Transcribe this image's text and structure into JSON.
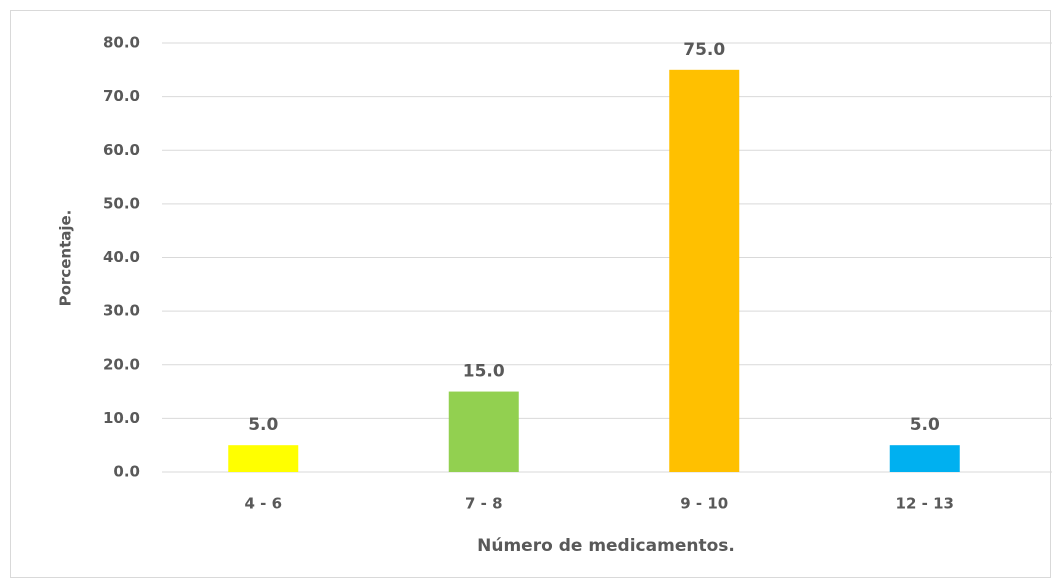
{
  "chart_data": {
    "type": "bar",
    "x_label": "Número de medicamentos.",
    "y_label": "Porcentaje.",
    "categories": [
      "4 - 6",
      "7 - 8",
      "9 - 10",
      "12 - 13"
    ],
    "values": [
      5.0,
      15.0,
      75.0,
      5.0
    ],
    "value_labels": [
      "5.0",
      "15.0",
      "75.0",
      "5.0"
    ],
    "colors": [
      "#ffff00",
      "#92d050",
      "#ffc000",
      "#00b0f0"
    ],
    "ylim": [
      0,
      80
    ],
    "yticks": [
      {
        "value": 0,
        "label": "0.0"
      },
      {
        "value": 10,
        "label": "10.0"
      },
      {
        "value": 20,
        "label": "20.0"
      },
      {
        "value": 30,
        "label": "30.0"
      },
      {
        "value": 40,
        "label": "40.0"
      },
      {
        "value": 50,
        "label": "50.0"
      },
      {
        "value": 60,
        "label": "60.0"
      },
      {
        "value": 70,
        "label": "70.0"
      },
      {
        "value": 80,
        "label": "80.0"
      }
    ],
    "grid": true
  }
}
